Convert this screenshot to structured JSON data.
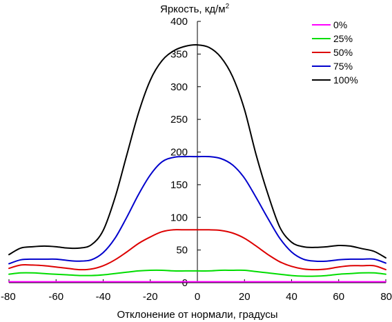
{
  "chart_data": {
    "type": "line",
    "ylabel": "Яркость, кд/м",
    "ylabel_superscript": "2",
    "xlabel": "Отклонение от нормали, градусы",
    "xlim": [
      -80,
      80
    ],
    "ylim": [
      0,
      400
    ],
    "x_ticks": [
      "-80",
      "-60",
      "-40",
      "-20",
      "0",
      "20",
      "40",
      "60",
      "80"
    ],
    "y_ticks": [
      "0",
      "50",
      "100",
      "150",
      "200",
      "250",
      "300",
      "350",
      "400"
    ],
    "grid": false,
    "legend_position": "top-right",
    "x": [
      -80,
      -75,
      -70,
      -65,
      -60,
      -55,
      -50,
      -45,
      -40,
      -35,
      -30,
      -25,
      -20,
      -15,
      -10,
      -5,
      0,
      5,
      10,
      15,
      20,
      25,
      30,
      35,
      40,
      45,
      50,
      55,
      60,
      65,
      70,
      75,
      80
    ],
    "series": [
      {
        "name": "0%",
        "color": "#ff00ff",
        "values": [
          1.5,
          1.5,
          1.5,
          1.5,
          1.5,
          1.5,
          1.5,
          1.5,
          1.5,
          1.5,
          1.5,
          1.5,
          1.5,
          1.5,
          1.5,
          1.5,
          1.5,
          1.5,
          1.5,
          1.5,
          1.5,
          1.5,
          1.5,
          1.5,
          1.5,
          1.5,
          1.5,
          1.5,
          1.5,
          1.5,
          1.5,
          1.5,
          1.5
        ]
      },
      {
        "name": "25%",
        "color": "#00dd00",
        "values": [
          13,
          15,
          15,
          14,
          13,
          12,
          11,
          11,
          12,
          14,
          16,
          18,
          19,
          19,
          18,
          18,
          18,
          18,
          19,
          19,
          19,
          17,
          15,
          13,
          11,
          10,
          10,
          11,
          13,
          14,
          15,
          15,
          13
        ]
      },
      {
        "name": "50%",
        "color": "#dd0000",
        "values": [
          22,
          27,
          27,
          26,
          24,
          22,
          20,
          21,
          26,
          35,
          47,
          60,
          70,
          78,
          81,
          81,
          81,
          81,
          80,
          76,
          68,
          56,
          43,
          32,
          25,
          21,
          20,
          21,
          24,
          26,
          26,
          26,
          20
        ]
      },
      {
        "name": "75%",
        "color": "#0000cc",
        "values": [
          29,
          35,
          36,
          36,
          36,
          34,
          33,
          35,
          46,
          68,
          100,
          135,
          165,
          185,
          192,
          193,
          193,
          193,
          190,
          180,
          160,
          130,
          98,
          68,
          47,
          36,
          33,
          33,
          35,
          36,
          36,
          36,
          30
        ]
      },
      {
        "name": "100%",
        "color": "#000000",
        "values": [
          43,
          53,
          55,
          56,
          55,
          53,
          53,
          58,
          80,
          130,
          195,
          260,
          310,
          340,
          355,
          362,
          364,
          360,
          345,
          315,
          265,
          195,
          135,
          85,
          62,
          55,
          54,
          55,
          57,
          56,
          52,
          48,
          38
        ]
      }
    ]
  }
}
